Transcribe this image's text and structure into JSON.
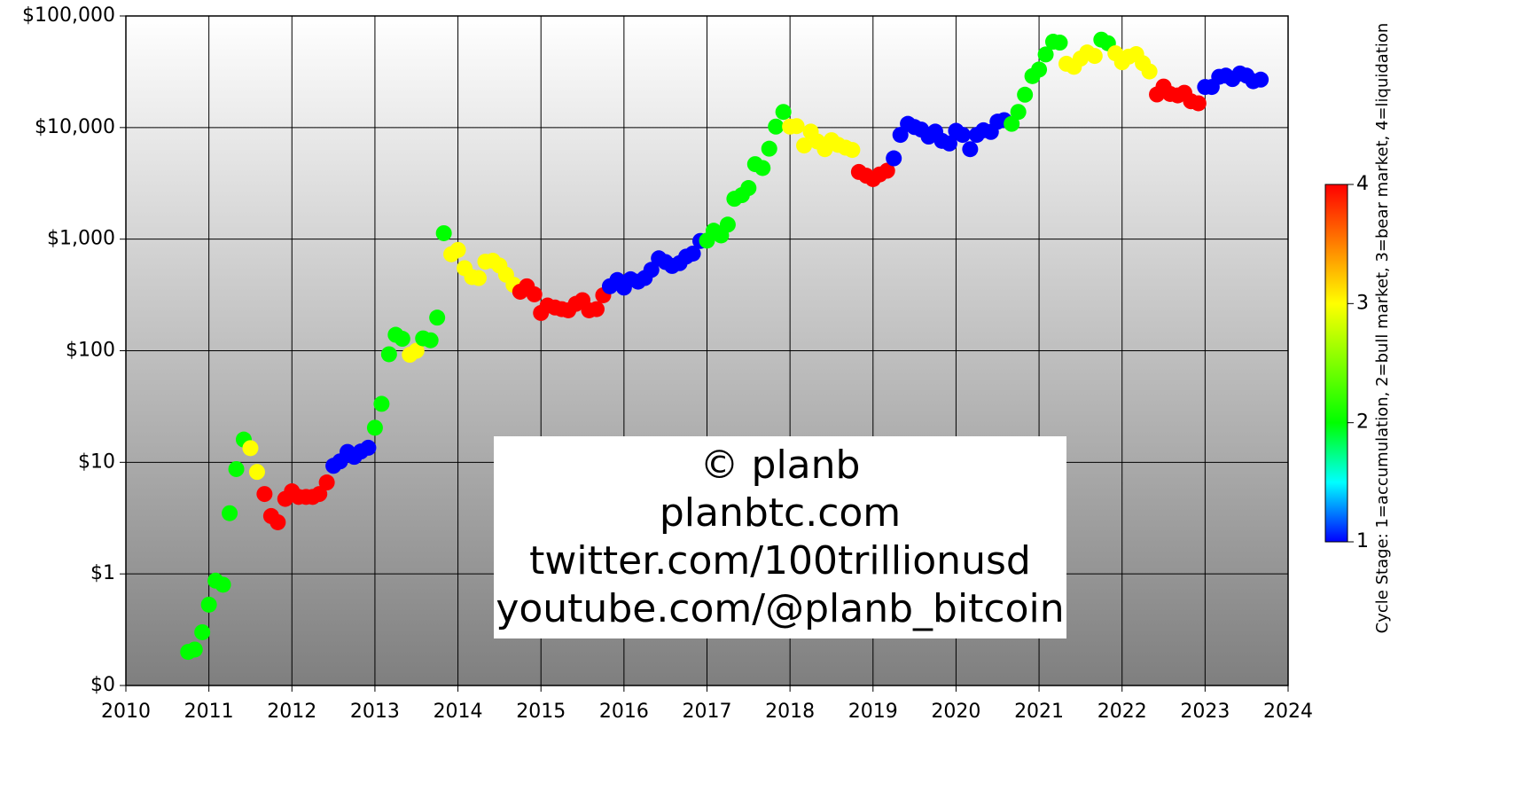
{
  "chart_data": {
    "type": "scatter",
    "log_y": true,
    "grid": true,
    "xlim": [
      2010,
      2024
    ],
    "xticks": [
      2010,
      2011,
      2012,
      2013,
      2014,
      2015,
      2016,
      2017,
      2018,
      2019,
      2020,
      2021,
      2022,
      2023,
      2024
    ],
    "ylim": [
      0.1,
      100000
    ],
    "yticks": [
      {
        "value": 0.1,
        "label": "$0"
      },
      {
        "value": 1,
        "label": "$1"
      },
      {
        "value": 10,
        "label": "$10"
      },
      {
        "value": 100,
        "label": "$100"
      },
      {
        "value": 1000,
        "label": "$1,000"
      },
      {
        "value": 10000,
        "label": "$10,000"
      },
      {
        "value": 100000,
        "label": "$100,000"
      }
    ],
    "annotation": [
      "© planb",
      "planbtc.com",
      "twitter.com/100trillionusd",
      "youtube.com/@planb_bitcoin"
    ],
    "colorbar": {
      "label": "Cycle Stage: 1=accumulation, 2=bull market, 3=bear market, 4=liquidation",
      "clim": [
        1,
        4
      ],
      "ticks": [
        1,
        2,
        3,
        4
      ],
      "colormap": [
        {
          "value": 1,
          "color": "#0000ff"
        },
        {
          "value": 1.5,
          "color": "#00ffff"
        },
        {
          "value": 2,
          "color": "#00ff00"
        },
        {
          "value": 3,
          "color": "#ffff00"
        },
        {
          "value": 4,
          "color": "#ff0000"
        }
      ]
    },
    "x": [
      2010.75,
      2010.83,
      2010.92,
      2011.0,
      2011.08,
      2011.17,
      2011.25,
      2011.33,
      2011.42,
      2011.5,
      2011.58,
      2011.67,
      2011.75,
      2011.83,
      2011.92,
      2012.0,
      2012.08,
      2012.17,
      2012.25,
      2012.33,
      2012.42,
      2012.5,
      2012.58,
      2012.67,
      2012.75,
      2012.83,
      2012.92,
      2013.0,
      2013.08,
      2013.17,
      2013.25,
      2013.33,
      2013.42,
      2013.5,
      2013.58,
      2013.67,
      2013.75,
      2013.83,
      2013.92,
      2014.0,
      2014.08,
      2014.17,
      2014.25,
      2014.33,
      2014.42,
      2014.5,
      2014.58,
      2014.67,
      2014.75,
      2014.83,
      2014.92,
      2015.0,
      2015.08,
      2015.17,
      2015.25,
      2015.33,
      2015.42,
      2015.5,
      2015.58,
      2015.67,
      2015.75,
      2015.83,
      2015.92,
      2016.0,
      2016.08,
      2016.17,
      2016.25,
      2016.33,
      2016.42,
      2016.5,
      2016.58,
      2016.67,
      2016.75,
      2016.83,
      2016.92,
      2017.0,
      2017.08,
      2017.17,
      2017.25,
      2017.33,
      2017.42,
      2017.5,
      2017.58,
      2017.67,
      2017.75,
      2017.83,
      2017.92,
      2018.0,
      2018.08,
      2018.17,
      2018.25,
      2018.33,
      2018.42,
      2018.5,
      2018.58,
      2018.67,
      2018.75,
      2018.83,
      2018.92,
      2019.0,
      2019.08,
      2019.17,
      2019.25,
      2019.33,
      2019.42,
      2019.5,
      2019.58,
      2019.67,
      2019.75,
      2019.83,
      2019.92,
      2020.0,
      2020.08,
      2020.17,
      2020.25,
      2020.33,
      2020.42,
      2020.5,
      2020.58,
      2020.67,
      2020.75,
      2020.83,
      2020.92,
      2021.0,
      2021.08,
      2021.17,
      2021.25,
      2021.33,
      2021.42,
      2021.5,
      2021.58,
      2021.67,
      2021.75,
      2021.83,
      2021.92,
      2022.0,
      2022.08,
      2022.17,
      2022.25,
      2022.33,
      2022.42,
      2022.5,
      2022.58,
      2022.67,
      2022.75,
      2022.83,
      2022.92,
      2023.0,
      2023.08,
      2023.17,
      2023.25,
      2023.33,
      2023.42,
      2023.5,
      2023.58,
      2023.67
    ],
    "values": [
      0.2,
      0.21,
      0.3,
      0.53,
      0.87,
      0.8,
      3.5,
      8.7,
      16,
      13.4,
      8.2,
      5.2,
      3.3,
      2.9,
      4.7,
      5.5,
      4.9,
      4.9,
      4.9,
      5.2,
      6.6,
      9.3,
      10.2,
      12.4,
      11.2,
      12.5,
      13.5,
      20.4,
      33.4,
      93,
      139,
      128,
      92,
      100,
      129,
      124,
      198,
      1130,
      732,
      800,
      550,
      457,
      448,
      628,
      640,
      580,
      480,
      390,
      338,
      378,
      320,
      218,
      254,
      244,
      236,
      230,
      263,
      284,
      230,
      236,
      314,
      378,
      430,
      368,
      437,
      416,
      448,
      531,
      673,
      624,
      575,
      609,
      698,
      742,
      963,
      970,
      1190,
      1080,
      1350,
      2300,
      2480,
      2870,
      4700,
      4340,
      6470,
      10200,
      13800,
      10200,
      10300,
      6900,
      9200,
      7500,
      6400,
      7700,
      7000,
      6600,
      6300,
      4000,
      3700,
      3450,
      3800,
      4100,
      5300,
      8600,
      10800,
      10100,
      9600,
      8300,
      9200,
      7600,
      7200,
      9350,
      8600,
      6400,
      8600,
      9450,
      9140,
      11300,
      11650,
      10800,
      13800,
      19700,
      28900,
      33100,
      45200,
      58800,
      57700,
      37300,
      35000,
      41500,
      47100,
      43800,
      61300,
      57000,
      46300,
      38500,
      43200,
      45500,
      37700,
      31800,
      19800,
      23300,
      20000,
      19400,
      20500,
      17200,
      16500,
      23100,
      23100,
      28500,
      29200,
      27200,
      30500,
      29200,
      26000,
      26900
    ],
    "stages": [
      2,
      2,
      2,
      2,
      2,
      2,
      2,
      2,
      2,
      3,
      3,
      4,
      4,
      4,
      4,
      4,
      4,
      4,
      4,
      4,
      4,
      1,
      1,
      1,
      1,
      1,
      1,
      2,
      2,
      2,
      2,
      2,
      3,
      3,
      2,
      2,
      2,
      2,
      3,
      3,
      3,
      3,
      3,
      3,
      3,
      3,
      3,
      3,
      4,
      4,
      4,
      4,
      4,
      4,
      4,
      4,
      4,
      4,
      4,
      4,
      4,
      1,
      1,
      1,
      1,
      1,
      1,
      1,
      1,
      1,
      1,
      1,
      1,
      1,
      1,
      2,
      2,
      2,
      2,
      2,
      2,
      2,
      2,
      2,
      2,
      2,
      2,
      3,
      3,
      3,
      3,
      3,
      3,
      3,
      3,
      3,
      3,
      4,
      4,
      4,
      4,
      4,
      1,
      1,
      1,
      1,
      1,
      1,
      1,
      1,
      1,
      1,
      1,
      1,
      1,
      1,
      1,
      1,
      1,
      2,
      2,
      2,
      2,
      2,
      2,
      2,
      2,
      3,
      3,
      3,
      3,
      3,
      2,
      2,
      3,
      3,
      3,
      3,
      3,
      3,
      4,
      4,
      4,
      4,
      4,
      4,
      4,
      1,
      1,
      1,
      1,
      1,
      1,
      1,
      1,
      1
    ]
  }
}
